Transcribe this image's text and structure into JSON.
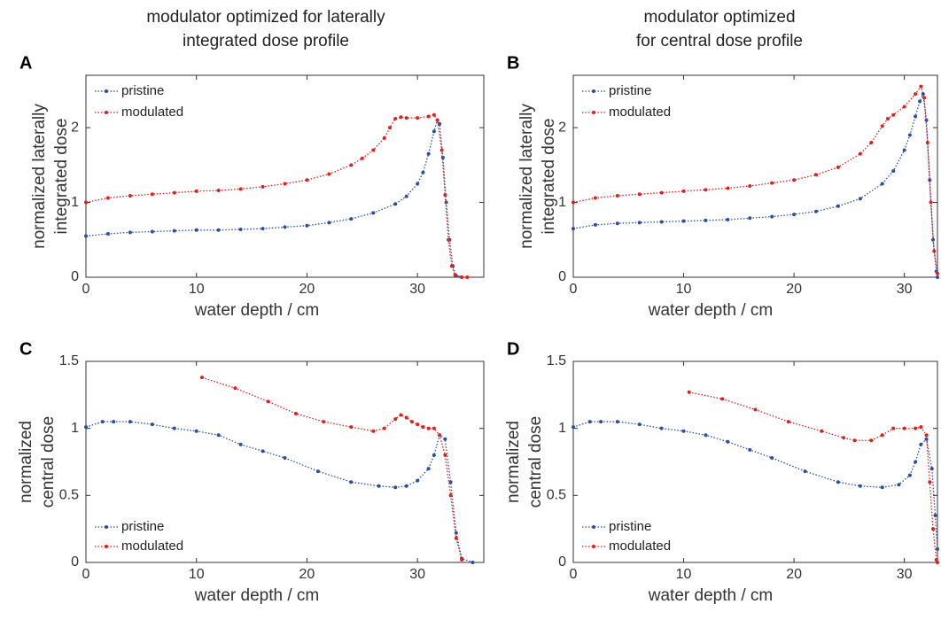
{
  "column_titles": [
    [
      "modulator optimized for laterally",
      "integrated dose profile"
    ],
    [
      "modulator optimized",
      "for central dose profile"
    ]
  ],
  "chart_data": [
    {
      "type": "line",
      "label": "A",
      "xlabel": "water depth / cm",
      "ylabel": [
        "normalized laterally",
        "integrated dose"
      ],
      "xlim": [
        0,
        36
      ],
      "xticks": [
        0,
        10,
        20,
        30
      ],
      "ylim": [
        0,
        2.7
      ],
      "yticks": [
        0,
        1,
        2
      ],
      "legend": "upper left",
      "series": [
        {
          "name": "pristine",
          "color": "#2a4ea6",
          "x": [
            0,
            2,
            4,
            6,
            8,
            10,
            12,
            14,
            16,
            18,
            20,
            22,
            24,
            26,
            28,
            29,
            30,
            30.5,
            31,
            31.5,
            31.8,
            32,
            32.3,
            32.6,
            32.9,
            33.2,
            33.5,
            34
          ],
          "values": [
            0.55,
            0.58,
            0.6,
            0.61,
            0.62,
            0.63,
            0.63,
            0.64,
            0.65,
            0.67,
            0.69,
            0.73,
            0.78,
            0.86,
            0.98,
            1.08,
            1.25,
            1.4,
            1.65,
            1.95,
            2.1,
            2.05,
            1.6,
            1.0,
            0.5,
            0.15,
            0.02,
            0
          ]
        },
        {
          "name": "modulated",
          "color": "#e0201c",
          "x": [
            0,
            2,
            4,
            6,
            8,
            10,
            12,
            14,
            16,
            18,
            20,
            22,
            24,
            25,
            26,
            27,
            27.5,
            28,
            28.5,
            29,
            30,
            31,
            31.5,
            31.8,
            32.2,
            32.5,
            32.8,
            33.1,
            33.4,
            34,
            34.5
          ],
          "values": [
            1.0,
            1.06,
            1.09,
            1.11,
            1.13,
            1.15,
            1.16,
            1.18,
            1.21,
            1.25,
            1.3,
            1.38,
            1.5,
            1.59,
            1.7,
            1.86,
            2.0,
            2.12,
            2.14,
            2.13,
            2.13,
            2.15,
            2.17,
            2.1,
            1.7,
            1.1,
            0.5,
            0.15,
            0.03,
            0,
            0
          ]
        }
      ]
    },
    {
      "type": "line",
      "label": "B",
      "xlabel": "water depth / cm",
      "ylabel": [
        "normalized laterally",
        "integrated dose"
      ],
      "xlim": [
        0,
        33
      ],
      "xticks": [
        0,
        10,
        20,
        30
      ],
      "ylim": [
        0,
        2.7
      ],
      "yticks": [
        0,
        1,
        2
      ],
      "legend": "upper left",
      "series": [
        {
          "name": "pristine",
          "color": "#2a4ea6",
          "x": [
            0,
            2,
            4,
            6,
            8,
            10,
            12,
            14,
            16,
            18,
            20,
            22,
            24,
            26,
            28,
            29,
            30,
            30.5,
            31,
            31.4,
            31.7,
            32,
            32.3,
            32.6,
            32.9,
            33
          ],
          "values": [
            0.65,
            0.7,
            0.72,
            0.73,
            0.74,
            0.75,
            0.76,
            0.77,
            0.79,
            0.81,
            0.84,
            0.88,
            0.95,
            1.05,
            1.25,
            1.42,
            1.7,
            1.9,
            2.15,
            2.35,
            2.45,
            2.1,
            1.3,
            0.5,
            0.08,
            0
          ]
        },
        {
          "name": "modulated",
          "color": "#e0201c",
          "x": [
            0,
            2,
            4,
            6,
            8,
            10,
            12,
            14,
            16,
            18,
            20,
            22,
            24,
            26,
            27,
            28,
            28.5,
            29,
            30,
            31,
            31.5,
            31.8,
            32.1,
            32.4,
            32.7,
            33
          ],
          "values": [
            1.0,
            1.06,
            1.09,
            1.11,
            1.13,
            1.15,
            1.17,
            1.19,
            1.22,
            1.26,
            1.3,
            1.37,
            1.47,
            1.65,
            1.8,
            2.02,
            2.12,
            2.17,
            2.28,
            2.45,
            2.55,
            2.4,
            1.8,
            1.0,
            0.35,
            0.05
          ]
        }
      ]
    },
    {
      "type": "line",
      "label": "C",
      "xlabel": "water depth / cm",
      "ylabel": [
        "normalized",
        "central dose"
      ],
      "xlim": [
        0,
        36
      ],
      "xticks": [
        0,
        10,
        20,
        30
      ],
      "ylim": [
        0,
        1.5
      ],
      "yticks": [
        0,
        0.5,
        1,
        1.5
      ],
      "legend": "lower left",
      "series": [
        {
          "name": "pristine",
          "color": "#2a4ea6",
          "x": [
            0,
            1.5,
            2.5,
            4,
            6,
            8,
            10,
            12,
            14,
            16,
            18,
            21,
            24,
            26.5,
            28,
            29,
            30,
            31,
            31.5,
            32,
            32.5,
            33,
            33.5,
            34,
            35
          ],
          "values": [
            1.01,
            1.05,
            1.05,
            1.05,
            1.03,
            1.0,
            0.98,
            0.95,
            0.88,
            0.83,
            0.78,
            0.68,
            0.6,
            0.57,
            0.56,
            0.57,
            0.61,
            0.7,
            0.8,
            0.95,
            0.92,
            0.6,
            0.22,
            0.03,
            0
          ]
        },
        {
          "name": "modulated",
          "color": "#e0201c",
          "x": [
            10.5,
            13.5,
            16.5,
            19,
            21.5,
            24,
            26,
            27,
            28,
            28.5,
            29,
            29.5,
            30,
            30.5,
            31,
            31.5,
            32,
            32.5,
            33,
            33.5,
            34
          ],
          "values": [
            1.38,
            1.3,
            1.2,
            1.11,
            1.05,
            1.01,
            0.98,
            1.0,
            1.07,
            1.1,
            1.08,
            1.05,
            1.03,
            1.01,
            1.0,
            1.0,
            0.95,
            0.8,
            0.5,
            0.18,
            0.02
          ]
        }
      ]
    },
    {
      "type": "line",
      "label": "D",
      "xlabel": "water depth / cm",
      "ylabel": [
        "normalized",
        "central dose"
      ],
      "xlim": [
        0,
        33
      ],
      "xticks": [
        0,
        10,
        20,
        30
      ],
      "ylim": [
        0,
        1.5
      ],
      "yticks": [
        0,
        0.5,
        1,
        1.5
      ],
      "legend": "lower left",
      "series": [
        {
          "name": "pristine",
          "color": "#2a4ea6",
          "x": [
            0,
            1.5,
            2.5,
            4,
            6,
            8,
            10,
            12,
            14,
            16,
            18,
            21,
            24,
            26,
            28,
            29.5,
            30.5,
            31,
            31.5,
            32,
            32.5,
            32.8,
            33
          ],
          "values": [
            1.01,
            1.05,
            1.05,
            1.05,
            1.03,
            1.0,
            0.98,
            0.95,
            0.9,
            0.84,
            0.78,
            0.68,
            0.6,
            0.57,
            0.56,
            0.58,
            0.65,
            0.75,
            0.88,
            0.92,
            0.7,
            0.35,
            0.1
          ]
        },
        {
          "name": "modulated",
          "color": "#e0201c",
          "x": [
            10.5,
            13.5,
            16.5,
            19.5,
            22.5,
            24.5,
            25.5,
            27,
            28,
            29,
            30,
            31,
            31.5,
            32,
            32.3,
            32.6,
            32.9,
            33
          ],
          "values": [
            1.27,
            1.22,
            1.14,
            1.05,
            0.98,
            0.93,
            0.91,
            0.91,
            0.95,
            1.0,
            1.0,
            1.0,
            1.01,
            0.95,
            0.6,
            0.25,
            0.02,
            0
          ]
        }
      ]
    }
  ]
}
